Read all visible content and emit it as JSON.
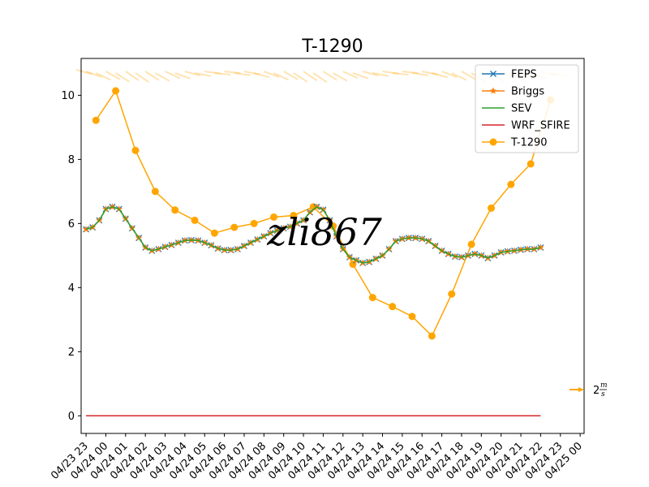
{
  "chart_data": {
    "type": "line",
    "title": "T-1290",
    "xlabel": "",
    "ylabel": "",
    "x_ticks": [
      "04/23 23",
      "04/24 00",
      "04/24 01",
      "04/24 02",
      "04/24 03",
      "04/24 04",
      "04/24 05",
      "04/24 06",
      "04/24 07",
      "04/24 08",
      "04/24 09",
      "04/24 10",
      "04/24 11",
      "04/24 12",
      "04/24 13",
      "04/24 14",
      "04/24 15",
      "04/24 16",
      "04/24 17",
      "04/24 18",
      "04/24 19",
      "04/24 20",
      "04/24 21",
      "04/24 22",
      "04/24 23",
      "04/25 00"
    ],
    "y_ticks": [
      0,
      2,
      4,
      6,
      8,
      10
    ],
    "ylim": [
      -0.55,
      11.15
    ],
    "xlim_hours": [
      -0.25,
      25.2
    ],
    "grid": false,
    "legend_position": "upper right",
    "series": [
      {
        "name": "FEPS",
        "color": "#1f77b4",
        "marker": "x",
        "x": [
          0,
          0.33,
          0.67,
          1,
          1.33,
          1.67,
          2,
          2.33,
          2.67,
          3,
          3.33,
          3.67,
          4,
          4.33,
          4.67,
          5,
          5.33,
          5.67,
          6,
          6.33,
          6.67,
          7,
          7.33,
          7.67,
          8,
          8.33,
          8.67,
          9,
          9.33,
          9.67,
          10,
          10.33,
          10.67,
          11,
          11.33,
          11.67,
          12,
          12.33,
          12.67,
          13,
          13.33,
          13.67,
          14,
          14.33,
          14.67,
          15,
          15.33,
          15.67,
          16,
          16.33,
          16.67,
          17,
          17.33,
          17.67,
          18,
          18.33,
          18.67,
          19,
          19.33,
          19.67,
          20,
          20.33,
          20.67,
          21,
          21.33,
          21.67,
          22,
          22.33,
          22.67,
          23
        ],
        "y": [
          5.82,
          5.88,
          6.1,
          6.45,
          6.52,
          6.45,
          6.15,
          5.85,
          5.55,
          5.25,
          5.15,
          5.2,
          5.27,
          5.33,
          5.4,
          5.47,
          5.48,
          5.47,
          5.4,
          5.32,
          5.22,
          5.17,
          5.17,
          5.2,
          5.3,
          5.4,
          5.5,
          5.6,
          5.7,
          5.78,
          5.85,
          5.9,
          6.0,
          6.1,
          6.35,
          6.52,
          6.43,
          6.1,
          5.6,
          5.2,
          4.95,
          4.85,
          4.77,
          4.8,
          4.9,
          5.0,
          5.2,
          5.45,
          5.52,
          5.55,
          5.55,
          5.52,
          5.45,
          5.3,
          5.15,
          5.05,
          4.97,
          4.95,
          5.0,
          5.05,
          5.0,
          4.92,
          5.0,
          5.1,
          5.13,
          5.15,
          5.18,
          5.2,
          5.2,
          5.25
        ]
      },
      {
        "name": "Briggs",
        "color": "#ff7f0e",
        "marker": "*",
        "x": [
          0,
          0.33,
          0.67,
          1,
          1.33,
          1.67,
          2,
          2.33,
          2.67,
          3,
          3.33,
          3.67,
          4,
          4.33,
          4.67,
          5,
          5.33,
          5.67,
          6,
          6.33,
          6.67,
          7,
          7.33,
          7.67,
          8,
          8.33,
          8.67,
          9,
          9.33,
          9.67,
          10,
          10.33,
          10.67,
          11,
          11.33,
          11.67,
          12,
          12.33,
          12.67,
          13,
          13.33,
          13.67,
          14,
          14.33,
          14.67,
          15,
          15.33,
          15.67,
          16,
          16.33,
          16.67,
          17,
          17.33,
          17.67,
          18,
          18.33,
          18.67,
          19,
          19.33,
          19.67,
          20,
          20.33,
          20.67,
          21,
          21.33,
          21.67,
          22,
          22.33,
          22.67,
          23
        ],
        "y": [
          5.82,
          5.88,
          6.1,
          6.45,
          6.52,
          6.45,
          6.15,
          5.85,
          5.55,
          5.25,
          5.15,
          5.2,
          5.27,
          5.33,
          5.4,
          5.47,
          5.48,
          5.47,
          5.4,
          5.32,
          5.22,
          5.17,
          5.17,
          5.2,
          5.3,
          5.4,
          5.5,
          5.6,
          5.7,
          5.78,
          5.85,
          5.9,
          6.0,
          6.1,
          6.35,
          6.52,
          6.43,
          6.1,
          5.6,
          5.2,
          4.95,
          4.85,
          4.77,
          4.8,
          4.9,
          5.0,
          5.2,
          5.45,
          5.52,
          5.55,
          5.55,
          5.52,
          5.45,
          5.3,
          5.15,
          5.05,
          4.97,
          4.95,
          5.0,
          5.05,
          5.0,
          4.92,
          5.0,
          5.1,
          5.13,
          5.15,
          5.18,
          5.2,
          5.2,
          5.25
        ]
      },
      {
        "name": "SEV",
        "color": "#2ca02c",
        "marker": "none",
        "x": [
          0,
          0.33,
          0.67,
          1,
          1.33,
          1.67,
          2,
          2.33,
          2.67,
          3,
          3.33,
          3.67,
          4,
          4.33,
          4.67,
          5,
          5.33,
          5.67,
          6,
          6.33,
          6.67,
          7,
          7.33,
          7.67,
          8,
          8.33,
          8.67,
          9,
          9.33,
          9.67,
          10,
          10.33,
          10.67,
          11,
          11.33,
          11.67,
          12,
          12.33,
          12.67,
          13,
          13.33,
          13.67,
          14,
          14.33,
          14.67,
          15,
          15.33,
          15.67,
          16,
          16.33,
          16.67,
          17,
          17.33,
          17.67,
          18,
          18.33,
          18.67,
          19,
          19.33,
          19.67,
          20,
          20.33,
          20.67,
          21,
          21.33,
          21.67,
          22,
          22.33,
          22.67,
          23
        ],
        "y": [
          5.82,
          5.88,
          6.1,
          6.45,
          6.52,
          6.45,
          6.15,
          5.85,
          5.55,
          5.25,
          5.15,
          5.2,
          5.27,
          5.33,
          5.4,
          5.47,
          5.48,
          5.47,
          5.4,
          5.32,
          5.22,
          5.17,
          5.17,
          5.2,
          5.3,
          5.4,
          5.5,
          5.6,
          5.7,
          5.78,
          5.85,
          5.9,
          6.0,
          6.1,
          6.35,
          6.52,
          6.43,
          6.1,
          5.6,
          5.2,
          4.95,
          4.85,
          4.77,
          4.8,
          4.9,
          5.0,
          5.2,
          5.45,
          5.52,
          5.55,
          5.55,
          5.52,
          5.45,
          5.3,
          5.15,
          5.05,
          4.97,
          4.95,
          5.0,
          5.05,
          5.0,
          4.92,
          5.0,
          5.1,
          5.13,
          5.15,
          5.18,
          5.2,
          5.2,
          5.25
        ]
      },
      {
        "name": "WRF_SFIRE",
        "color": "#d62728",
        "marker": "none",
        "x": [
          0,
          23
        ],
        "y": [
          0,
          0
        ]
      },
      {
        "name": "T-1290",
        "color": "#ffa500",
        "marker": "o",
        "x": [
          0.5,
          1.5,
          2.5,
          3.5,
          4.5,
          5.5,
          6.5,
          7.5,
          8.5,
          9.5,
          10.5,
          11.5,
          12.5,
          13.5,
          14.5,
          15.5,
          16.5,
          17.5,
          18.5,
          19.5,
          20.5,
          21.5,
          22.5,
          23.5
        ],
        "y": [
          9.22,
          10.14,
          8.28,
          7.0,
          6.42,
          6.1,
          5.7,
          5.88,
          6.0,
          6.2,
          6.25,
          6.52,
          5.92,
          4.73,
          3.69,
          3.41,
          3.1,
          2.49,
          3.8,
          5.35,
          6.48,
          7.22,
          7.86,
          9.86
        ]
      }
    ]
  },
  "wind": {
    "color": "#ffa500",
    "reference_label": "2",
    "reference_unit_num": "m",
    "reference_unit_den": "s"
  },
  "watermark": "zli867"
}
